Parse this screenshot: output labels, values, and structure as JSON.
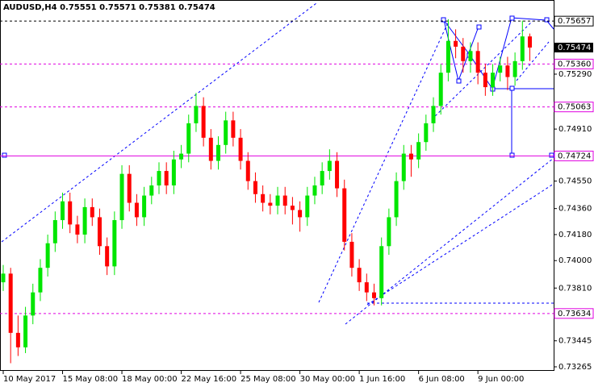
{
  "chart_data": {
    "type": "candlestick",
    "symbol": "AUDUSD,H4",
    "categories": [
      "10 May 2017",
      null,
      null,
      null,
      null,
      null,
      null,
      null,
      "15 May 08:00",
      null,
      null,
      null,
      null,
      null,
      null,
      null,
      "18 May 00:00",
      null,
      null,
      null,
      null,
      null,
      null,
      null,
      "22 May 16:00",
      null,
      null,
      null,
      null,
      null,
      null,
      null,
      "25 May 08:00",
      null,
      null,
      null,
      null,
      null,
      null,
      null,
      "30 May 00:00",
      null,
      null,
      null,
      null,
      null,
      null,
      null,
      "1 Jun 16:00",
      null,
      null,
      null,
      null,
      null,
      null,
      null,
      "6 Jun 08:00",
      null,
      null,
      null,
      null,
      null,
      null,
      null,
      "9 Jun 00:00",
      null,
      null,
      null,
      null,
      null,
      null,
      null
    ],
    "open": [
      0.7385,
      0.7391,
      0.735,
      0.734,
      0.7362,
      0.7378,
      0.7395,
      0.7412,
      0.7428,
      0.7441,
      0.7425,
      0.7418,
      0.7437,
      0.743,
      0.741,
      0.7396,
      0.7428,
      0.746,
      0.744,
      0.743,
      0.7445,
      0.7452,
      0.7462,
      0.7452,
      0.747,
      0.7474,
      0.7495,
      0.7507,
      0.7485,
      0.7469,
      0.748,
      0.7497,
      0.7485,
      0.7469,
      0.7455,
      0.7446,
      0.744,
      0.7438,
      0.7445,
      0.7438,
      0.7435,
      0.743,
      0.7445,
      0.7452,
      0.7462,
      0.7469,
      0.745,
      0.7413,
      0.7395,
      0.7385,
      0.7378,
      0.7374,
      0.741,
      0.743,
      0.7455,
      0.7474,
      0.747,
      0.7482,
      0.7495,
      0.7507,
      0.753,
      0.7552,
      0.7548,
      0.7538,
      0.7545,
      0.753,
      0.752,
      0.753,
      0.7535,
      0.7527,
      0.7538,
      0.75551
    ],
    "high": [
      0.7397,
      0.7395,
      0.7362,
      0.7368,
      0.7384,
      0.7401,
      0.7418,
      0.7434,
      0.7447,
      0.7447,
      0.7431,
      0.7443,
      0.7443,
      0.7436,
      0.7416,
      0.7434,
      0.7466,
      0.7466,
      0.7446,
      0.7451,
      0.7458,
      0.7468,
      0.7468,
      0.7476,
      0.748,
      0.7501,
      0.7516,
      0.7513,
      0.7491,
      0.7486,
      0.7503,
      0.7503,
      0.7491,
      0.7475,
      0.7461,
      0.7452,
      0.7446,
      0.7451,
      0.7451,
      0.7444,
      0.7441,
      0.7451,
      0.7458,
      0.7468,
      0.7477,
      0.7475,
      0.7456,
      0.7419,
      0.7401,
      0.7391,
      0.7384,
      0.7416,
      0.7436,
      0.7461,
      0.748,
      0.748,
      0.7488,
      0.7501,
      0.7513,
      0.7536,
      0.7567,
      0.756,
      0.7554,
      0.7551,
      0.7551,
      0.7536,
      0.7536,
      0.7541,
      0.7541,
      0.7544,
      0.7566,
      0.75571
    ],
    "low": [
      0.7379,
      0.7329,
      0.7334,
      0.7336,
      0.7356,
      0.7372,
      0.7389,
      0.7406,
      0.7422,
      0.7419,
      0.7412,
      0.7412,
      0.7424,
      0.7404,
      0.739,
      0.739,
      0.7422,
      0.7434,
      0.7424,
      0.7424,
      0.7439,
      0.7446,
      0.7446,
      0.7446,
      0.7464,
      0.7468,
      0.7489,
      0.7479,
      0.7463,
      0.7463,
      0.7474,
      0.7479,
      0.7463,
      0.7449,
      0.744,
      0.7434,
      0.7432,
      0.7432,
      0.7432,
      0.7425,
      0.742,
      0.7424,
      0.7439,
      0.7446,
      0.7456,
      0.7444,
      0.7407,
      0.7389,
      0.7379,
      0.7372,
      0.7369,
      0.7369,
      0.7404,
      0.7424,
      0.7449,
      0.7458,
      0.7464,
      0.7476,
      0.7489,
      0.7501,
      0.7524,
      0.754,
      0.753,
      0.753,
      0.7522,
      0.7514,
      0.7514,
      0.7524,
      0.7518,
      0.7521,
      0.7532,
      0.75381
    ],
    "close": [
      0.7391,
      0.735,
      0.734,
      0.7362,
      0.7378,
      0.7395,
      0.7412,
      0.7428,
      0.7441,
      0.7425,
      0.7418,
      0.7437,
      0.743,
      0.741,
      0.7396,
      0.7428,
      0.746,
      0.744,
      0.743,
      0.7445,
      0.7452,
      0.7462,
      0.7452,
      0.747,
      0.7474,
      0.7495,
      0.7507,
      0.7485,
      0.7469,
      0.748,
      0.7497,
      0.7485,
      0.7469,
      0.7455,
      0.7446,
      0.744,
      0.7438,
      0.7445,
      0.7438,
      0.7435,
      0.743,
      0.7445,
      0.7452,
      0.7462,
      0.7469,
      0.745,
      0.7413,
      0.7395,
      0.7385,
      0.7378,
      0.7374,
      0.741,
      0.743,
      0.7455,
      0.7474,
      0.747,
      0.7482,
      0.7495,
      0.7507,
      0.753,
      0.7552,
      0.7548,
      0.7538,
      0.7545,
      0.753,
      0.752,
      0.753,
      0.7535,
      0.7527,
      0.7538,
      0.75551,
      0.75474
    ],
    "up_color": "#00e600",
    "down_color": "#ff0000",
    "ylim": [
      0.73237,
      0.75803
    ],
    "yticks": [
      {
        "value": 0.7529,
        "label": "0.75290"
      },
      {
        "value": 0.7491,
        "label": "0.74910"
      },
      {
        "value": 0.7455,
        "label": "0.74550"
      },
      {
        "value": 0.7436,
        "label": "0.74360"
      },
      {
        "value": 0.7418,
        "label": "0.74180"
      },
      {
        "value": 0.74,
        "label": "0.74000"
      },
      {
        "value": 0.7381,
        "label": "0.73810"
      },
      0.73445,
      0.73265
    ],
    "levels": [
      {
        "value": 0.75657,
        "color": "#000000",
        "dashed": true
      },
      {
        "value": 0.7536,
        "label": "0.75360",
        "color": "#e000e0",
        "dashed": true
      },
      {
        "value": 0.75063,
        "color": "#e000e0",
        "dashed": true
      },
      {
        "value": 0.74724,
        "color": "#e000e0",
        "dashed": false
      },
      {
        "value": 0.73634,
        "color": "#e000e0",
        "dashed": true
      }
    ]
  }
}
